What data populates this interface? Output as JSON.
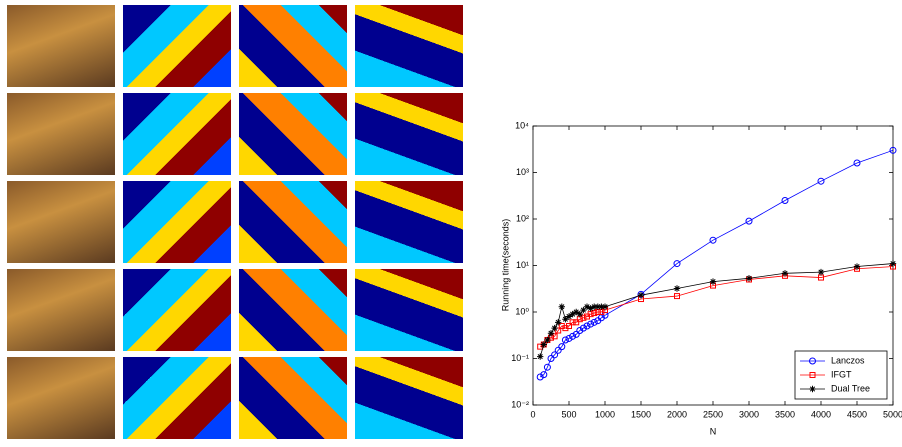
{
  "chart_data": {
    "type": "line",
    "xlabel": "N",
    "ylabel": "Running time(seconds)",
    "x": [
      100,
      150,
      200,
      250,
      300,
      350,
      400,
      450,
      500,
      550,
      600,
      650,
      700,
      750,
      800,
      850,
      900,
      950,
      1000,
      1500,
      2000,
      2500,
      3000,
      3500,
      4000,
      4500,
      5000
    ],
    "series": [
      {
        "name": "Lanczos",
        "color": "#0000ff",
        "marker": "circle",
        "values": [
          0.04,
          0.045,
          0.065,
          0.1,
          0.12,
          0.15,
          0.18,
          0.25,
          0.27,
          0.3,
          0.33,
          0.4,
          0.45,
          0.5,
          0.55,
          0.6,
          0.65,
          0.75,
          0.85,
          2.4,
          11,
          35,
          90,
          250,
          650,
          1600,
          3000
        ]
      },
      {
        "name": "IFGT",
        "color": "#ff0000",
        "marker": "square",
        "values": [
          0.18,
          0.2,
          0.25,
          0.28,
          0.3,
          0.4,
          0.5,
          0.45,
          0.5,
          0.6,
          0.6,
          0.7,
          0.75,
          0.8,
          0.9,
          0.95,
          1.0,
          1.0,
          1.1,
          1.9,
          2.2,
          3.7,
          5,
          6,
          5.5,
          8.5,
          9.5
        ]
      },
      {
        "name": "Dual Tree",
        "color": "#000000",
        "marker": "star",
        "values": [
          0.11,
          0.2,
          0.25,
          0.35,
          0.45,
          0.6,
          1.3,
          0.7,
          0.8,
          0.9,
          1.0,
          0.9,
          1.1,
          1.3,
          1.2,
          1.3,
          1.3,
          1.3,
          1.3,
          2.3,
          3.2,
          4.5,
          5.3,
          6.8,
          7.2,
          9.5,
          11
        ]
      }
    ],
    "xlim": [
      0,
      5000
    ],
    "xticks": [
      0,
      500,
      1000,
      1500,
      2000,
      2500,
      3000,
      3500,
      4000,
      4500,
      5000
    ],
    "ylim": [
      0.01,
      10000
    ],
    "log_y": true,
    "yticks": [
      {
        "value": 0.01,
        "label": "10⁻²"
      },
      {
        "value": 0.1,
        "label": "10⁻¹"
      },
      {
        "value": 1,
        "label": "10⁰"
      },
      {
        "value": 10,
        "label": "10¹"
      },
      {
        "value": 100,
        "label": "10²"
      },
      {
        "value": 1000,
        "label": "10³"
      },
      {
        "value": 10000,
        "label": "10⁴"
      }
    ],
    "legend": "lower right"
  }
}
